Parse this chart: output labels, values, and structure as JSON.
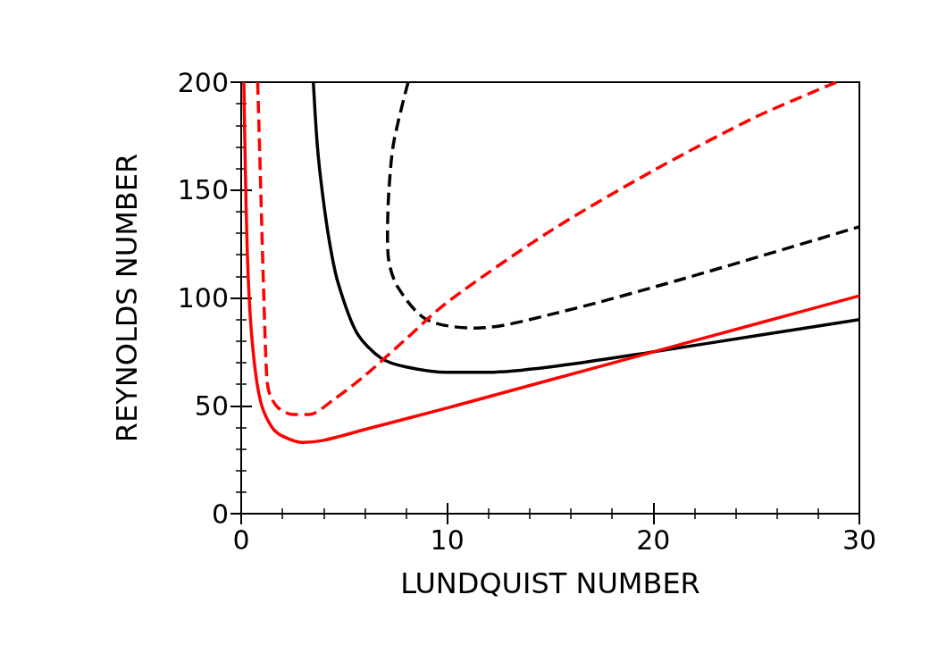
{
  "chart_data": {
    "type": "line",
    "xlabel": "LUNDQUIST NUMBER",
    "ylabel": "REYNOLDS NUMBER",
    "xlim": [
      0,
      30
    ],
    "ylim": [
      0,
      200
    ],
    "xticks": [
      0,
      10,
      20,
      30
    ],
    "yticks": [
      0,
      50,
      100,
      150,
      200
    ],
    "grid": false,
    "marker": "none",
    "series": [
      {
        "color": "#000000",
        "line_style": "solid",
        "x": [
          3.5,
          3.7,
          3.95,
          4.3,
          4.7,
          5.6,
          6.8,
          8,
          10,
          12,
          15,
          20,
          25,
          30
        ],
        "values": [
          200,
          170,
          148,
          125,
          107,
          84,
          72,
          68,
          65.5,
          65.5,
          68,
          75,
          82.5,
          90
        ]
      },
      {
        "color": "#000000",
        "line_style": "dashed",
        "x": [
          8.1,
          7.4,
          7.17,
          7.1,
          7.15,
          7.6,
          9,
          11.4,
          15.3,
          21.5,
          30
        ],
        "values": [
          200,
          172,
          150,
          130,
          118,
          105,
          90,
          86,
          93,
          109,
          133
        ]
      },
      {
        "color": "#ff0000",
        "line_style": "solid",
        "x": [
          0.13,
          0.2,
          0.3,
          0.45,
          0.7,
          1,
          1.5,
          2,
          3,
          4,
          6,
          10,
          15,
          20,
          25,
          30
        ],
        "values": [
          200,
          160,
          120,
          90,
          65,
          50,
          40,
          36,
          33,
          34,
          39,
          49,
          62,
          75,
          88,
          101
        ]
      },
      {
        "color": "#ff0000",
        "line_style": "dashed",
        "x": [
          0.8,
          0.95,
          1.1,
          1.25,
          1.4,
          1.8,
          2.5,
          3.3,
          4.5,
          6,
          8,
          10,
          15,
          20,
          25,
          28.9
        ],
        "values": [
          200,
          150,
          100,
          62,
          55,
          49,
          46,
          46,
          53,
          64,
          81,
          98,
          131,
          159,
          184,
          200
        ]
      }
    ]
  }
}
